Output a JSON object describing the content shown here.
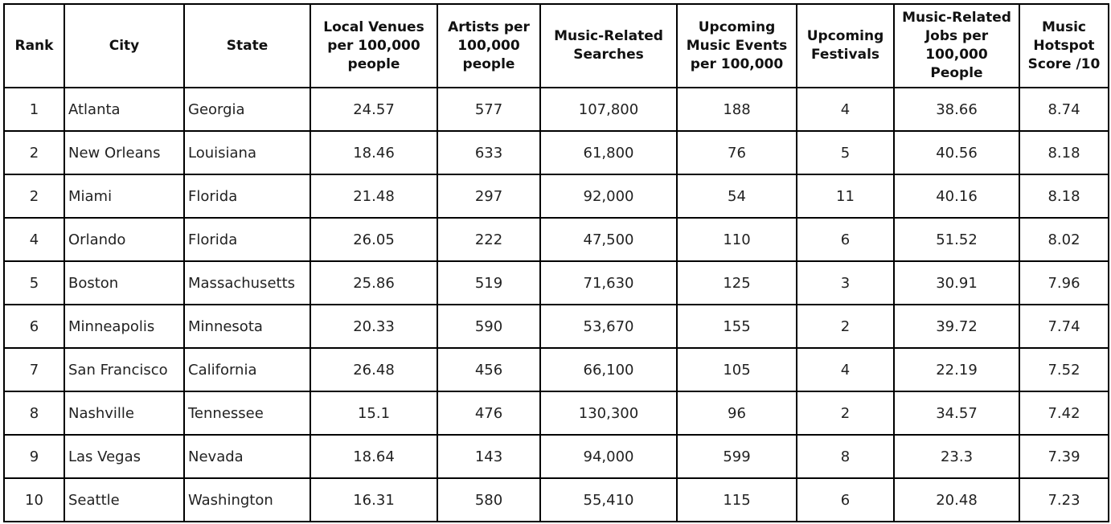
{
  "table": {
    "headers": [
      "Rank",
      "City",
      "State",
      "Local Venues per 100,000 people",
      "Artists per 100,000 people",
      "Music-Related Searches",
      "Upcoming Music Events per 100,000",
      "Upcoming Festivals",
      "Music-Related Jobs per 100,000 People",
      "Music Hotspot Score /10"
    ],
    "rows": [
      [
        "1",
        "Atlanta",
        "Georgia",
        "24.57",
        "577",
        "107,800",
        "188",
        "4",
        "38.66",
        "8.74"
      ],
      [
        "2",
        "New Orleans",
        "Louisiana",
        "18.46",
        "633",
        "61,800",
        "76",
        "5",
        "40.56",
        "8.18"
      ],
      [
        "2",
        "Miami",
        "Florida",
        "21.48",
        "297",
        "92,000",
        "54",
        "11",
        "40.16",
        "8.18"
      ],
      [
        "4",
        "Orlando",
        "Florida",
        "26.05",
        "222",
        "47,500",
        "110",
        "6",
        "51.52",
        "8.02"
      ],
      [
        "5",
        "Boston",
        "Massachusetts",
        "25.86",
        "519",
        "71,630",
        "125",
        "3",
        "30.91",
        "7.96"
      ],
      [
        "6",
        "Minneapolis",
        "Minnesota",
        "20.33",
        "590",
        "53,670",
        "155",
        "2",
        "39.72",
        "7.74"
      ],
      [
        "7",
        "San Francisco",
        "California",
        "26.48",
        "456",
        "66,100",
        "105",
        "4",
        "22.19",
        "7.52"
      ],
      [
        "8",
        "Nashville",
        "Tennessee",
        "15.1",
        "476",
        "130,300",
        "96",
        "2",
        "34.57",
        "7.42"
      ],
      [
        "9",
        "Las Vegas",
        "Nevada",
        "18.64",
        "143",
        "94,000",
        "599",
        "8",
        "23.3",
        "7.39"
      ],
      [
        "10",
        "Seattle",
        "Washington",
        "16.31",
        "580",
        "55,410",
        "115",
        "6",
        "20.48",
        "7.23"
      ]
    ]
  }
}
